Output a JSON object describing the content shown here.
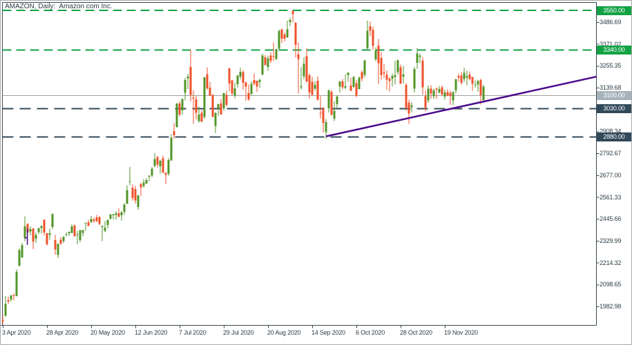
{
  "window": {
    "title": "AMAZON, Daily:  Amazon com Inc."
  },
  "colors": {
    "background": "#ffffff",
    "frame": "#37474f",
    "axis_text": "#2b3c46",
    "up": "#509427",
    "down": "#ef512a",
    "green_line": "#12a244",
    "green_badge": "#12a244",
    "slate_line": "#31495a",
    "slate_badge": "#31495a",
    "gray_line": "#a0a0a0",
    "gray_badge": "#a7b3bb",
    "badge_text": "#ffffff",
    "trend": "#4b0a8c"
  },
  "chart_data": {
    "type": "candlestick",
    "symbol": "AMAZON",
    "timeframe": "Daily",
    "company": "Amazon com Inc.",
    "grid": false,
    "ylim": [
      1884.4,
      3592.5
    ],
    "y_ticks": [
      {
        "value": 3486.69,
        "label": "3486.69"
      },
      {
        "value": 3371.02,
        "label": "3371.02"
      },
      {
        "value": 3255.35,
        "label": "3255.35"
      },
      {
        "value": 3139.68,
        "label": "3139.68"
      },
      {
        "value": 3024.01,
        "label": "3024.01"
      },
      {
        "value": 2908.34,
        "label": "2908.34"
      },
      {
        "value": 2792.67,
        "label": "2792.67"
      },
      {
        "value": 2677.0,
        "label": "2677.00"
      },
      {
        "value": 2561.33,
        "label": "2561.33"
      },
      {
        "value": 2445.66,
        "label": "2445.66"
      },
      {
        "value": 2329.99,
        "label": "2329.99"
      },
      {
        "value": 2214.32,
        "label": "2214.32"
      },
      {
        "value": 2098.65,
        "label": "2098.65"
      },
      {
        "value": 1982.98,
        "label": "1982.98"
      }
    ],
    "x_ticks": [
      {
        "index": 0,
        "label": "3 Apr 2020"
      },
      {
        "index": 16,
        "label": "28 Apr 2020"
      },
      {
        "index": 32,
        "label": "20 May 2020"
      },
      {
        "index": 48,
        "label": "12 Jun 2020"
      },
      {
        "index": 64,
        "label": "7 Jul 2020"
      },
      {
        "index": 80,
        "label": "29 Jul 2020"
      },
      {
        "index": 96,
        "label": "20 Aug 2020"
      },
      {
        "index": 112,
        "label": "14 Sep 2020"
      },
      {
        "index": 128,
        "label": "6 Oct 2020"
      },
      {
        "index": 144,
        "label": "28 Oct 2020"
      },
      {
        "index": 160,
        "label": "19 Nov 2020"
      }
    ],
    "h_lines": [
      {
        "price": 3550.0,
        "label": "3550.00",
        "style": "dashed",
        "color_key": "green"
      },
      {
        "price": 3340.0,
        "label": "3340.00",
        "style": "dashed",
        "color_key": "green"
      },
      {
        "price": 3100.0,
        "label": "3100.00",
        "style": "solid",
        "color_key": "gray"
      },
      {
        "price": 3030.0,
        "label": "3030.00",
        "style": "dashed",
        "color_key": "slate"
      },
      {
        "price": 2880.0,
        "label": "2880.00",
        "style": "dashed",
        "color_key": "slate"
      }
    ],
    "trendline": {
      "x1_index": 117,
      "price1": 2884,
      "x2_index": 214.9,
      "price2": 3200
    },
    "doji_marker": {
      "x_index": 8.9,
      "high": 2395,
      "low": 2310,
      "arm_price": 2347
    },
    "candles": [
      [
        1911,
        1939,
        1889,
        1906
      ],
      [
        1936,
        2039,
        1930,
        1997
      ],
      [
        2017,
        2035,
        1997,
        2011
      ],
      [
        2021,
        2044,
        2011,
        2043
      ],
      [
        2044,
        2053,
        2017,
        2042
      ],
      [
        2040,
        2180,
        2038,
        2168
      ],
      [
        2200,
        2292,
        2195,
        2283
      ],
      [
        2244,
        2319,
        2240,
        2307
      ],
      [
        2346,
        2461,
        2330,
        2408
      ],
      [
        2420,
        2426,
        2356,
        2375
      ],
      [
        2381,
        2409,
        2361,
        2393
      ],
      [
        2397,
        2398,
        2288,
        2328
      ],
      [
        2343,
        2376,
        2320,
        2363
      ],
      [
        2377,
        2399,
        2366,
        2399
      ],
      [
        2399,
        2413,
        2370,
        2410
      ],
      [
        2443,
        2444,
        2360,
        2376
      ],
      [
        2372,
        2373,
        2306,
        2314
      ],
      [
        2362,
        2395,
        2337,
        2372
      ],
      [
        2404,
        2475,
        2391,
        2474
      ],
      [
        2336,
        2362,
        2258,
        2286
      ],
      [
        2256,
        2318,
        2241,
        2315
      ],
      [
        2337,
        2351,
        2308,
        2317
      ],
      [
        2329,
        2357,
        2320,
        2351
      ],
      [
        2365,
        2376,
        2356,
        2367
      ],
      [
        2372,
        2381,
        2357,
        2379
      ],
      [
        2374,
        2419,
        2372,
        2409
      ],
      [
        2411,
        2419,
        2355,
        2356
      ],
      [
        2367,
        2383,
        2313,
        2367
      ],
      [
        2336,
        2388,
        2324,
        2388
      ],
      [
        2374,
        2389,
        2355,
        2388
      ],
      [
        2422,
        2428,
        2384,
        2426
      ],
      [
        2429,
        2442,
        2411,
        2410
      ],
      [
        2430,
        2462,
        2426,
        2447
      ],
      [
        2444,
        2453,
        2426,
        2437
      ],
      [
        2455,
        2469,
        2430,
        2436
      ],
      [
        2458,
        2462,
        2414,
        2421
      ],
      [
        2404,
        2413,
        2330,
        2410
      ],
      [
        2384,
        2436,
        2378,
        2401
      ],
      [
        2415,
        2442,
        2398,
        2442
      ],
      [
        2448,
        2474,
        2444,
        2471
      ],
      [
        2467,
        2473,
        2445,
        2472
      ],
      [
        2468,
        2488,
        2444,
        2478
      ],
      [
        2477,
        2503,
        2455,
        2460
      ],
      [
        2466,
        2488,
        2437,
        2483
      ],
      [
        2485,
        2530,
        2469,
        2524
      ],
      [
        2529,
        2626,
        2525,
        2600
      ],
      [
        2645,
        2722,
        2626,
        2647
      ],
      [
        2612,
        2630,
        2544,
        2558
      ],
      [
        2606,
        2621,
        2528,
        2545
      ],
      [
        2510,
        2573,
        2495,
        2572
      ],
      [
        2630,
        2640,
        2568,
        2615
      ],
      [
        2622,
        2658,
        2613,
        2640
      ],
      [
        2635,
        2664,
        2632,
        2653
      ],
      [
        2672,
        2680,
        2645,
        2675
      ],
      [
        2676,
        2722,
        2668,
        2713
      ],
      [
        2727,
        2796,
        2721,
        2764
      ],
      [
        2775,
        2780,
        2721,
        2734
      ],
      [
        2725,
        2760,
        2688,
        2754
      ],
      [
        2768,
        2782,
        2688,
        2692
      ],
      [
        2690,
        2696,
        2630,
        2680
      ],
      [
        2685,
        2769,
        2675,
        2758
      ],
      [
        2757,
        2895,
        2754,
        2878
      ],
      [
        2912,
        2955,
        2871,
        2890
      ],
      [
        2934,
        3059,
        2930,
        3057
      ],
      [
        3058,
        3069,
        2990,
        3000
      ],
      [
        3022,
        3083,
        2999,
        3081
      ],
      [
        3115,
        3193,
        3074,
        3182
      ],
      [
        3191,
        3215,
        3135,
        3200
      ],
      [
        3251,
        3344,
        3068,
        3104
      ],
      [
        3089,
        3127,
        2950,
        3084
      ],
      [
        3080,
        3098,
        2973,
        3008
      ],
      [
        2965,
        3041,
        2956,
        2999
      ],
      [
        3009,
        3024,
        2961,
        2961
      ],
      [
        2986,
        3198,
        2976,
        3197
      ],
      [
        3213,
        3249,
        3131,
        3138
      ],
      [
        3141,
        3172,
        3098,
        3099
      ],
      [
        3103,
        3106,
        2994,
        2987
      ],
      [
        2940,
        3010,
        2900,
        3008
      ],
      [
        3030,
        3056,
        2993,
        3055
      ],
      [
        3057,
        3081,
        3000,
        3000
      ],
      [
        3033,
        3115,
        3020,
        3113
      ],
      [
        3103,
        3126,
        3042,
        3051
      ],
      [
        3244,
        3246,
        3121,
        3164
      ],
      [
        3180,
        3184,
        3101,
        3111
      ],
      [
        3100,
        3167,
        3085,
        3138
      ],
      [
        3160,
        3210,
        3141,
        3205
      ],
      [
        3201,
        3248,
        3186,
        3225
      ],
      [
        3224,
        3234,
        3130,
        3167
      ],
      [
        3170,
        3172,
        3073,
        3148
      ],
      [
        3113,
        3159,
        3073,
        3080
      ],
      [
        3108,
        3174,
        3101,
        3162
      ],
      [
        3182,
        3217,
        3155,
        3161
      ],
      [
        3178,
        3179,
        3120,
        3148
      ],
      [
        3171,
        3190,
        3142,
        3182
      ],
      [
        3212,
        3320,
        3205,
        3312
      ],
      [
        3303,
        3315,
        3260,
        3260
      ],
      [
        3252,
        3312,
        3232,
        3297
      ],
      [
        3311,
        3327,
        3272,
        3284
      ],
      [
        3310,
        3380,
        3283,
        3307
      ],
      [
        3294,
        3347,
        3287,
        3346
      ],
      [
        3348,
        3451,
        3345,
        3441
      ],
      [
        3450,
        3453,
        3378,
        3400
      ],
      [
        3423,
        3433,
        3386,
        3401
      ],
      [
        3408,
        3495,
        3405,
        3450
      ],
      [
        3489,
        3513,
        3467,
        3499
      ],
      [
        3547,
        3552,
        3486,
        3531
      ],
      [
        3485,
        3488,
        3303,
        3368
      ],
      [
        3318,
        3381,
        3111,
        3294
      ],
      [
        3144,
        3250,
        3130,
        3149
      ],
      [
        3202,
        3303,
        3185,
        3268
      ],
      [
        3307,
        3349,
        3170,
        3175
      ],
      [
        3208,
        3217,
        3083,
        3116
      ],
      [
        3172,
        3198,
        3100,
        3103
      ],
      [
        3136,
        3175,
        3126,
        3156
      ],
      [
        3179,
        3202,
        3074,
        3078
      ],
      [
        3009,
        3096,
        2977,
        3008
      ],
      [
        3031,
        3037,
        2905,
        2955
      ],
      [
        2906,
        2975,
        2871,
        2960
      ],
      [
        3033,
        3133,
        3010,
        3128
      ],
      [
        3120,
        3127,
        2992,
        2999
      ],
      [
        2977,
        3069,
        2965,
        3019
      ],
      [
        3054,
        3101,
        3033,
        3095
      ],
      [
        3148,
        3175,
        3117,
        3174
      ],
      [
        3175,
        3188,
        3132,
        3144
      ],
      [
        3141,
        3212,
        3133,
        3149
      ],
      [
        3208,
        3224,
        3172,
        3221
      ],
      [
        3153,
        3195,
        3123,
        3125
      ],
      [
        3145,
        3202,
        3140,
        3199
      ],
      [
        3165,
        3182,
        3090,
        3099
      ],
      [
        3135,
        3200,
        3132,
        3195
      ],
      [
        3224,
        3233,
        3174,
        3190
      ],
      [
        3210,
        3288,
        3197,
        3286
      ],
      [
        3349,
        3496,
        3339,
        3442
      ],
      [
        3467,
        3492,
        3413,
        3443
      ],
      [
        3447,
        3464,
        3340,
        3363
      ],
      [
        3292,
        3355,
        3280,
        3338
      ],
      [
        3364,
        3399,
        3160,
        3272
      ],
      [
        3299,
        3329,
        3183,
        3207
      ],
      [
        3222,
        3266,
        3192,
        3217
      ],
      [
        3212,
        3233,
        3131,
        3184
      ],
      [
        3189,
        3198,
        3121,
        3176
      ],
      [
        3189,
        3217,
        3148,
        3204
      ],
      [
        3198,
        3284,
        3159,
        3207
      ],
      [
        3224,
        3291,
        3211,
        3286
      ],
      [
        3249,
        3264,
        3162,
        3162
      ],
      [
        3201,
        3257,
        3164,
        3211
      ],
      [
        3157,
        3167,
        3019,
        3036
      ],
      [
        3061,
        3077,
        2950,
        3004
      ],
      [
        3038,
        3066,
        3013,
        3049
      ],
      [
        3136,
        3251,
        3117,
        3241
      ],
      [
        3274,
        3352,
        3240,
        3322
      ],
      [
        3304,
        3322,
        3271,
        3311
      ],
      [
        3284,
        3305,
        3105,
        3144
      ],
      [
        3096,
        3128,
        3016,
        3035
      ],
      [
        3075,
        3152,
        3061,
        3137
      ],
      [
        3136,
        3155,
        3083,
        3110
      ],
      [
        3096,
        3136,
        3081,
        3128
      ],
      [
        3136,
        3144,
        3083,
        3131
      ],
      [
        3117,
        3150,
        3110,
        3135
      ],
      [
        3143,
        3152,
        3101,
        3105
      ],
      [
        3095,
        3132,
        3077,
        3117
      ],
      [
        3118,
        3132,
        3096,
        3099
      ],
      [
        3114,
        3127,
        3051,
        3098
      ],
      [
        3075,
        3124,
        3049,
        3118
      ],
      [
        3128,
        3190,
        3110,
        3185
      ],
      [
        3203,
        3216,
        3173,
        3195
      ],
      [
        3206,
        3223,
        3158,
        3168
      ],
      [
        3188,
        3248,
        3172,
        3220
      ],
      [
        3194,
        3232,
        3155,
        3203
      ],
      [
        3211,
        3228,
        3180,
        3187
      ],
      [
        3198,
        3198,
        3126,
        3162
      ],
      [
        3156,
        3180,
        3141,
        3158
      ],
      [
        3158,
        3184,
        3120,
        3177
      ],
      [
        3182,
        3190,
        3053,
        3104
      ],
      [
        3076,
        3156,
        3060,
        3148
      ]
    ]
  }
}
